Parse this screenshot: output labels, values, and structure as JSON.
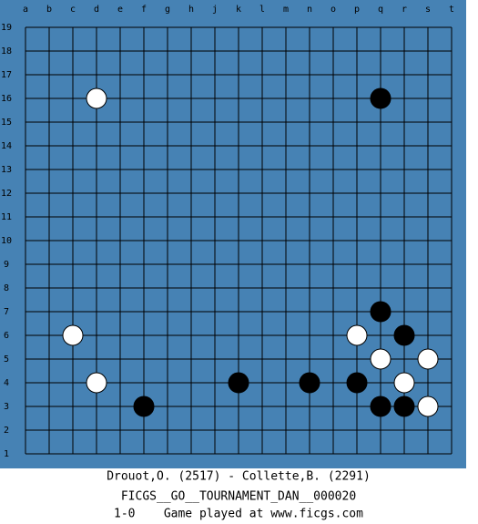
{
  "board": {
    "columns": [
      "a",
      "b",
      "c",
      "d",
      "e",
      "f",
      "g",
      "h",
      "j",
      "k",
      "l",
      "m",
      "n",
      "o",
      "p",
      "q",
      "r",
      "s",
      "t"
    ],
    "rows": [
      19,
      18,
      17,
      16,
      15,
      14,
      13,
      12,
      11,
      10,
      9,
      8,
      7,
      6,
      5,
      4,
      3,
      2,
      1
    ],
    "stones": [
      {
        "color": "white",
        "col": "d",
        "row": 16
      },
      {
        "color": "black",
        "col": "q",
        "row": 16
      },
      {
        "color": "black",
        "col": "q",
        "row": 7
      },
      {
        "color": "white",
        "col": "c",
        "row": 6
      },
      {
        "color": "white",
        "col": "p",
        "row": 6
      },
      {
        "color": "black",
        "col": "r",
        "row": 6
      },
      {
        "color": "white",
        "col": "q",
        "row": 5
      },
      {
        "color": "white",
        "col": "s",
        "row": 5
      },
      {
        "color": "white",
        "col": "d",
        "row": 4
      },
      {
        "color": "black",
        "col": "k",
        "row": 4
      },
      {
        "color": "black",
        "col": "n",
        "row": 4
      },
      {
        "color": "black",
        "col": "p",
        "row": 4
      },
      {
        "color": "white",
        "col": "r",
        "row": 4
      },
      {
        "color": "black",
        "col": "f",
        "row": 3
      },
      {
        "color": "black",
        "col": "q",
        "row": 3
      },
      {
        "color": "black",
        "col": "r",
        "row": 3
      },
      {
        "color": "white",
        "col": "s",
        "row": 3
      }
    ]
  },
  "caption": {
    "players": "Drouot,O. (2517) - Collette,B. (2291)",
    "event": "FICGS__GO__TOURNAMENT_DAN__000020",
    "result": "1-0    Game played at www.ficgs.com"
  }
}
